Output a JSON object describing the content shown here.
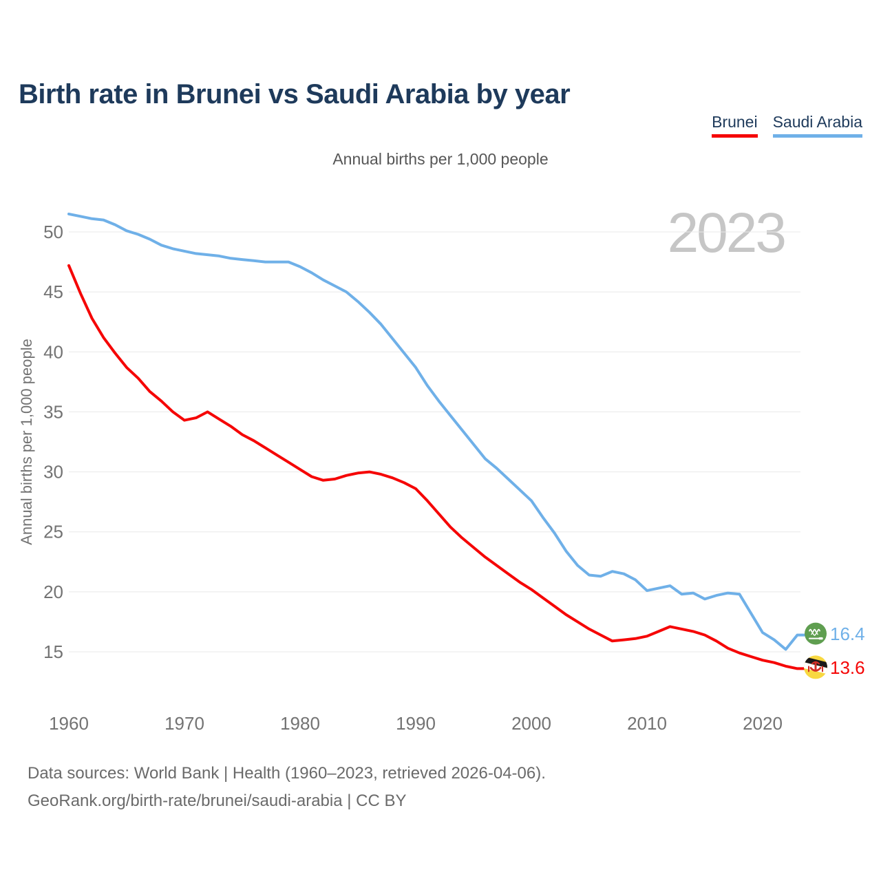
{
  "title": "Birth rate in Brunei vs Saudi Arabia by year",
  "subtitle": "Annual births per 1,000 people",
  "watermark_year": "2023",
  "colors": {
    "title_text": "#1e3a5b",
    "brunei_red": "#f50505",
    "saudi_blue": "#6fb0e8",
    "watermark": "#c6c6c6",
    "gridline": "#e8e8e8",
    "tick_text": "#737373"
  },
  "legend": [
    {
      "label": "Brunei",
      "color": "#f50505"
    },
    {
      "label": "Saudi Arabia",
      "color": "#6fb0e8"
    }
  ],
  "chart_data": {
    "type": "line",
    "title": "Birth rate in Brunei vs Saudi Arabia by year",
    "subtitle": "Annual births per 1,000 people",
    "xlabel": "",
    "ylabel": "Annual births per 1,000 people",
    "xlim": [
      1960,
      2023
    ],
    "ylim": [
      12,
      53
    ],
    "xticks": [
      1960,
      1970,
      1980,
      1990,
      2000,
      2010,
      2020
    ],
    "yticks": [
      15,
      20,
      25,
      30,
      35,
      40,
      45,
      50
    ],
    "grid": true,
    "legend_position": "top-right",
    "x": [
      1960,
      1961,
      1962,
      1963,
      1964,
      1965,
      1966,
      1967,
      1968,
      1969,
      1970,
      1971,
      1972,
      1973,
      1974,
      1975,
      1976,
      1977,
      1978,
      1979,
      1980,
      1981,
      1982,
      1983,
      1984,
      1985,
      1986,
      1987,
      1988,
      1989,
      1990,
      1991,
      1992,
      1993,
      1994,
      1995,
      1996,
      1997,
      1998,
      1999,
      2000,
      2001,
      2002,
      2003,
      2004,
      2005,
      2006,
      2007,
      2008,
      2009,
      2010,
      2011,
      2012,
      2013,
      2014,
      2015,
      2016,
      2017,
      2018,
      2019,
      2020,
      2021,
      2022,
      2023
    ],
    "series": [
      {
        "name": "Brunei",
        "color": "#f50505",
        "end_label": "13.6",
        "flag_icon": "brunei-flag-icon",
        "values": [
          47.2,
          44.9,
          42.8,
          41.2,
          39.9,
          38.7,
          37.8,
          36.7,
          35.9,
          35.0,
          34.3,
          34.5,
          35.0,
          34.4,
          33.8,
          33.1,
          32.6,
          32.0,
          31.4,
          30.8,
          30.2,
          29.6,
          29.3,
          29.4,
          29.7,
          29.9,
          30.0,
          29.8,
          29.5,
          29.1,
          28.6,
          27.6,
          26.5,
          25.4,
          24.5,
          23.7,
          22.9,
          22.2,
          21.5,
          20.8,
          20.2,
          19.5,
          18.8,
          18.1,
          17.5,
          16.9,
          16.4,
          15.9,
          16.0,
          16.1,
          16.3,
          16.7,
          17.1,
          16.9,
          16.7,
          16.4,
          15.9,
          15.3,
          14.9,
          14.6,
          14.3,
          14.1,
          13.8,
          13.6
        ]
      },
      {
        "name": "Saudi Arabia",
        "color": "#6fb0e8",
        "end_label": "16.4",
        "flag_icon": "saudi-arabia-flag-icon",
        "values": [
          51.5,
          51.3,
          51.1,
          51.0,
          50.6,
          50.1,
          49.8,
          49.4,
          48.9,
          48.6,
          48.4,
          48.2,
          48.1,
          48.0,
          47.8,
          47.7,
          47.6,
          47.5,
          47.5,
          47.5,
          47.1,
          46.6,
          46.0,
          45.5,
          45.0,
          44.2,
          43.3,
          42.3,
          41.1,
          39.9,
          38.7,
          37.2,
          35.9,
          34.7,
          33.5,
          32.3,
          31.1,
          30.3,
          29.4,
          28.5,
          27.6,
          26.2,
          24.9,
          23.4,
          22.2,
          21.4,
          21.3,
          21.7,
          21.5,
          21.0,
          20.1,
          20.3,
          20.5,
          19.8,
          19.9,
          19.4,
          19.7,
          19.9,
          19.8,
          18.2,
          16.6,
          16.0,
          15.2,
          16.4
        ]
      }
    ]
  },
  "footer": {
    "line1": "Data sources: World Bank | Health (1960–2023, retrieved 2026-04-06).",
    "line2": "GeoRank.org/birth-rate/brunei/saudi-arabia | CC BY"
  }
}
